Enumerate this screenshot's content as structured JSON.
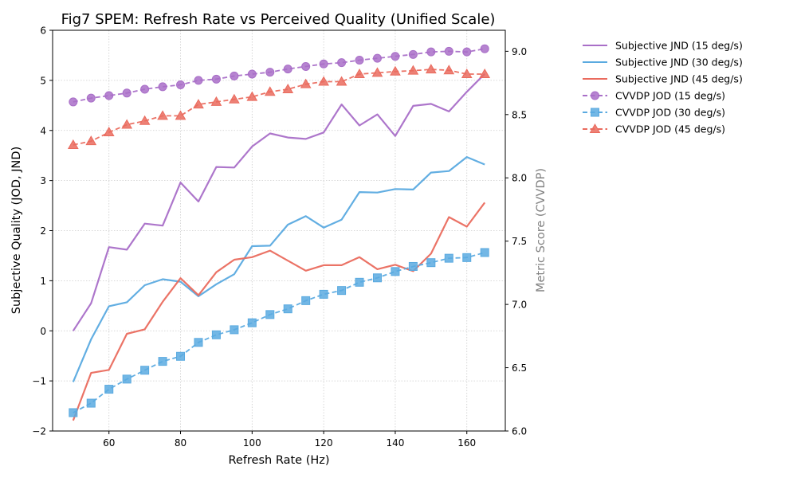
{
  "chart_data": {
    "type": "line",
    "title": "Fig7 SPEM: Refresh Rate vs Perceived Quality (Unified Scale)",
    "xlabel": "Refresh Rate (Hz)",
    "ylabel": "Subjective Quality (JOD, JND)",
    "ylabel_right": "Metric Score (CVVDP)",
    "xlim": [
      44.25,
      170.75
    ],
    "ylim": [
      -2,
      6
    ],
    "ylim_right": [
      6.0,
      9.166
    ],
    "x_ticks": [
      60,
      80,
      100,
      120,
      140,
      160
    ],
    "x_tick_labels": [
      "60",
      "80",
      "100",
      "120",
      "140",
      "160"
    ],
    "y_ticks": [
      -2,
      -1,
      0,
      1,
      2,
      3,
      4,
      5,
      6
    ],
    "y_tick_labels": [
      "−2",
      "−1",
      "0",
      "1",
      "2",
      "3",
      "4",
      "5",
      "6"
    ],
    "y_ticks_right": [
      6.0,
      6.5,
      7.0,
      7.5,
      8.0,
      8.5,
      9.0
    ],
    "y_tick_labels_right": [
      "6.0",
      "6.5",
      "7.0",
      "7.5",
      "8.0",
      "8.5",
      "9.0"
    ],
    "grid": true,
    "legend_position": "outside-right-top",
    "x": [
      50,
      55,
      60,
      65,
      70,
      75,
      80,
      85,
      90,
      95,
      100,
      105,
      110,
      115,
      120,
      125,
      130,
      135,
      140,
      145,
      150,
      155,
      160,
      165
    ],
    "series": [
      {
        "name": "Subjective JND (15 deg/s)",
        "axis": "left",
        "style": "solid",
        "marker": "none",
        "color": "#a96fc8",
        "values": [
          0.0,
          0.55,
          1.67,
          1.62,
          2.14,
          2.1,
          2.96,
          2.58,
          3.27,
          3.26,
          3.68,
          3.94,
          3.86,
          3.83,
          3.96,
          4.52,
          4.1,
          4.32,
          3.89,
          4.49,
          4.53,
          4.38,
          4.77,
          5.13
        ]
      },
      {
        "name": "Subjective JND (30 deg/s)",
        "axis": "left",
        "style": "solid",
        "marker": "none",
        "color": "#5aaae0",
        "values": [
          -1.02,
          -0.17,
          0.49,
          0.57,
          0.91,
          1.03,
          0.98,
          0.69,
          0.93,
          1.13,
          1.69,
          1.7,
          2.12,
          2.29,
          2.06,
          2.22,
          2.77,
          2.76,
          2.83,
          2.82,
          3.16,
          3.19,
          3.47,
          3.32
        ]
      },
      {
        "name": "Subjective JND (45 deg/s)",
        "axis": "left",
        "style": "solid",
        "marker": "none",
        "color": "#ea6b5e",
        "values": [
          -1.79,
          -0.84,
          -0.78,
          -0.06,
          0.03,
          0.58,
          1.05,
          0.71,
          1.17,
          1.42,
          1.47,
          1.6,
          1.4,
          1.2,
          1.31,
          1.31,
          1.47,
          1.23,
          1.32,
          1.19,
          1.54,
          2.27,
          2.08,
          2.56
        ]
      },
      {
        "name": "CVVDP JOD (15 deg/s)",
        "axis": "right",
        "style": "dashed",
        "marker": "circle",
        "color": "#a96fc8",
        "values": [
          8.6,
          8.63,
          8.65,
          8.67,
          8.7,
          8.72,
          8.735,
          8.77,
          8.78,
          8.805,
          8.82,
          8.835,
          8.86,
          8.88,
          8.9,
          8.91,
          8.93,
          8.945,
          8.96,
          8.975,
          8.995,
          9.0,
          8.995,
          9.02
        ]
      },
      {
        "name": "CVVDP JOD (30 deg/s)",
        "axis": "right",
        "style": "dashed",
        "marker": "square",
        "color": "#5aaae0",
        "values": [
          6.145,
          6.22,
          6.33,
          6.41,
          6.48,
          6.55,
          6.59,
          6.7,
          6.76,
          6.8,
          6.855,
          6.92,
          6.965,
          7.03,
          7.08,
          7.11,
          7.175,
          7.21,
          7.26,
          7.3,
          7.33,
          7.365,
          7.37,
          7.41
        ]
      },
      {
        "name": "CVVDP JOD (45 deg/s)",
        "axis": "right",
        "style": "dashed",
        "marker": "triangle",
        "color": "#ea6b5e",
        "values": [
          8.26,
          8.29,
          8.36,
          8.42,
          8.45,
          8.49,
          8.49,
          8.58,
          8.6,
          8.62,
          8.64,
          8.68,
          8.7,
          8.74,
          8.76,
          8.76,
          8.82,
          8.83,
          8.84,
          8.847,
          8.857,
          8.85,
          8.82,
          8.82
        ]
      }
    ]
  }
}
